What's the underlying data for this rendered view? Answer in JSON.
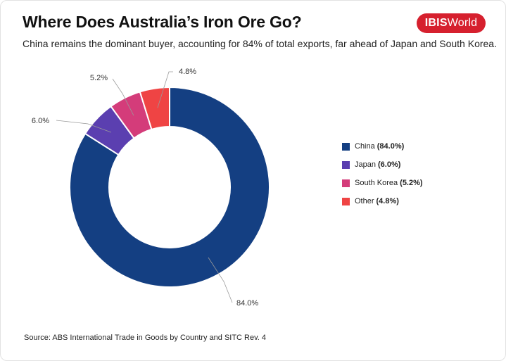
{
  "header": {
    "title": "Where Does Australia’s Iron Ore Go?",
    "subtitle": "China remains the dominant buyer, accounting for 84% of total exports, far ahead of Japan and South Korea.",
    "logo_bold": "IBIS",
    "logo_light": "World"
  },
  "colors": {
    "China": "#143f82",
    "Japan": "#5b3fb0",
    "South Korea": "#d43c7a",
    "Other": "#ef4444",
    "logo": "#d6202e"
  },
  "chart_data": {
    "type": "pie",
    "variant": "donut",
    "title": "Where Does Australia’s Iron Ore Go?",
    "categories": [
      "China",
      "Japan",
      "South Korea",
      "Other"
    ],
    "values": [
      84.0,
      6.0,
      5.2,
      4.8
    ],
    "data_labels": [
      "84.0%",
      "6.0%",
      "5.2%",
      "4.8%"
    ],
    "legend_position": "right",
    "legend_entries": [
      {
        "name": "China",
        "pct": "(84.0%)"
      },
      {
        "name": "Japan",
        "pct": "(6.0%)"
      },
      {
        "name": "South Korea",
        "pct": "(5.2%)"
      },
      {
        "name": "Other",
        "pct": "(4.8%)"
      }
    ]
  },
  "footer": {
    "source": "Source: ABS International Trade in Goods by Country and SITC Rev. 4"
  }
}
